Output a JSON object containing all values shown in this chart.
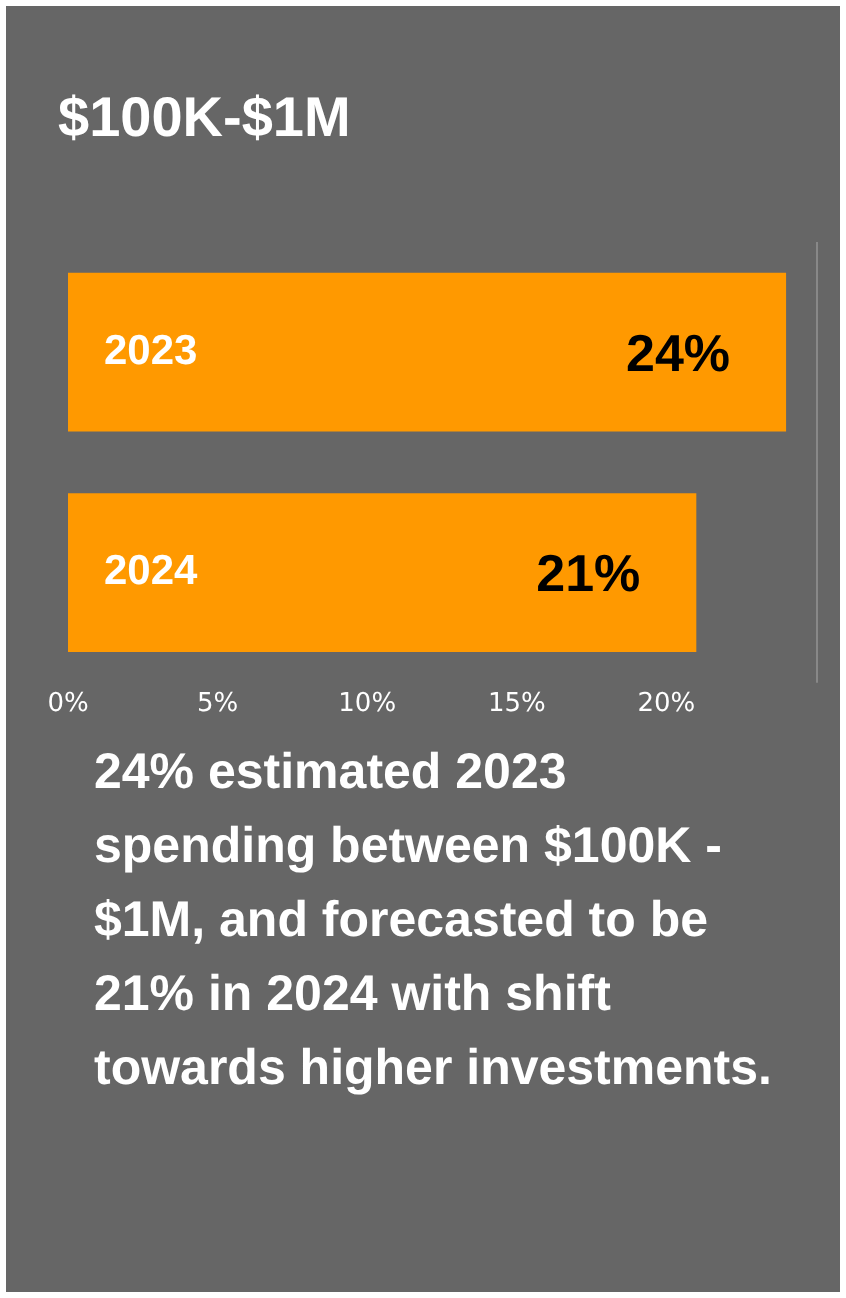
{
  "chart_data": {
    "type": "bar",
    "orientation": "horizontal",
    "title": "$100K-$1M",
    "categories": [
      "2023",
      "2024"
    ],
    "values": [
      24,
      21
    ],
    "color": "#ff9900",
    "xlim": [
      0,
      25
    ],
    "xticks": [
      {
        "value": 0,
        "label": "0%"
      },
      {
        "value": 5,
        "label": "5%"
      },
      {
        "value": 10,
        "label": "10%"
      },
      {
        "value": 15,
        "label": "15%"
      },
      {
        "value": 20,
        "label": "20%"
      }
    ],
    "value_labels": [
      "24%",
      "21%"
    ],
    "grid": false,
    "legend": false,
    "annotations": [
      "24% estimated 2023 spending between $100K - $1M, and forecasted to be 21% in 2024 with shift towards higher investments."
    ]
  }
}
